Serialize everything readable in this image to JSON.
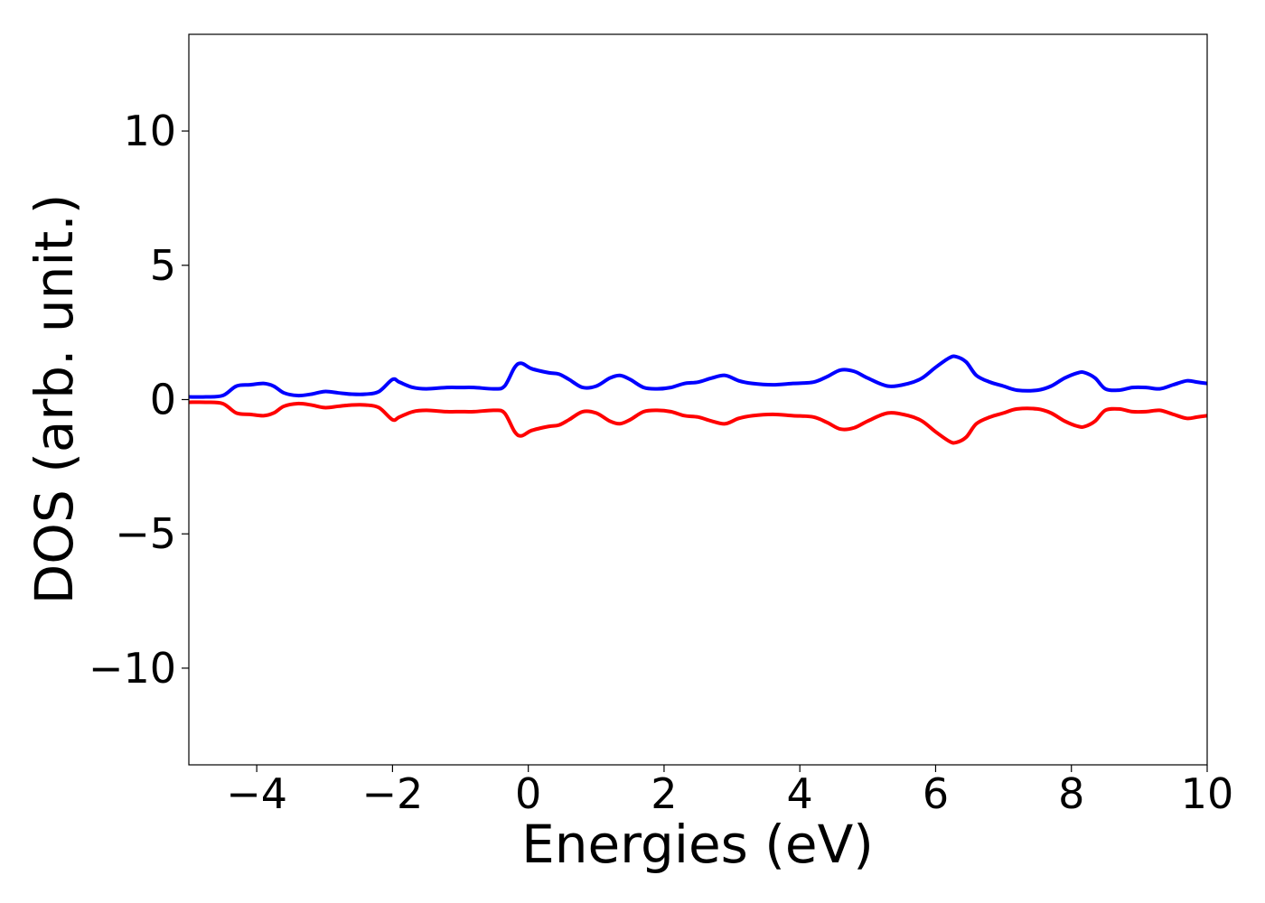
{
  "chart_data": {
    "type": "line",
    "title": "",
    "xlabel": "Energies (eV)",
    "ylabel": "DOS (arb. unit.)",
    "xlim": [
      -5,
      10
    ],
    "ylim": [
      -13.6,
      13.6
    ],
    "xticks": [
      -4,
      -2,
      0,
      2,
      4,
      6,
      8,
      10
    ],
    "xtick_labels": [
      "−4",
      "−2",
      "0",
      "2",
      "4",
      "6",
      "8",
      "10"
    ],
    "yticks": [
      -10,
      -5,
      0,
      5,
      10
    ],
    "ytick_labels": [
      "−10",
      "−5",
      "0",
      "5",
      "10"
    ],
    "grid": false,
    "legend": "none",
    "x": [
      -5.0,
      -4.75,
      -4.5,
      -4.3,
      -4.1,
      -3.9,
      -3.75,
      -3.6,
      -3.4,
      -3.2,
      -3.0,
      -2.8,
      -2.6,
      -2.4,
      -2.2,
      -2.0,
      -1.9,
      -1.7,
      -1.5,
      -1.2,
      -1.0,
      -0.8,
      -0.5,
      -0.35,
      -0.2,
      -0.1,
      0.05,
      0.3,
      0.45,
      0.6,
      0.8,
      1.0,
      1.2,
      1.35,
      1.5,
      1.7,
      1.9,
      2.1,
      2.3,
      2.5,
      2.7,
      2.9,
      3.1,
      3.3,
      3.6,
      3.9,
      4.2,
      4.4,
      4.6,
      4.8,
      5.0,
      5.3,
      5.6,
      5.8,
      6.0,
      6.2,
      6.3,
      6.45,
      6.6,
      6.8,
      7.0,
      7.2,
      7.5,
      7.7,
      7.9,
      8.1,
      8.2,
      8.35,
      8.5,
      8.7,
      8.9,
      9.1,
      9.3,
      9.5,
      9.7,
      9.85,
      10.0
    ],
    "series": [
      {
        "color": "#0000ff",
        "values": [
          0.1,
          0.1,
          0.15,
          0.5,
          0.55,
          0.6,
          0.5,
          0.25,
          0.15,
          0.2,
          0.3,
          0.25,
          0.2,
          0.2,
          0.3,
          0.75,
          0.65,
          0.45,
          0.4,
          0.45,
          0.45,
          0.45,
          0.4,
          0.5,
          1.2,
          1.35,
          1.15,
          1.0,
          0.95,
          0.75,
          0.45,
          0.5,
          0.8,
          0.9,
          0.75,
          0.45,
          0.4,
          0.45,
          0.6,
          0.65,
          0.8,
          0.9,
          0.7,
          0.6,
          0.55,
          0.6,
          0.65,
          0.85,
          1.1,
          1.05,
          0.8,
          0.5,
          0.6,
          0.8,
          1.2,
          1.55,
          1.6,
          1.4,
          0.9,
          0.65,
          0.5,
          0.35,
          0.35,
          0.5,
          0.8,
          1.0,
          1.0,
          0.8,
          0.4,
          0.35,
          0.45,
          0.45,
          0.4,
          0.55,
          0.7,
          0.65,
          0.6
        ]
      },
      {
        "color": "#ff0000",
        "values": [
          -0.1,
          -0.1,
          -0.15,
          -0.5,
          -0.55,
          -0.6,
          -0.5,
          -0.25,
          -0.15,
          -0.2,
          -0.3,
          -0.25,
          -0.2,
          -0.2,
          -0.3,
          -0.75,
          -0.65,
          -0.45,
          -0.4,
          -0.45,
          -0.45,
          -0.45,
          -0.4,
          -0.5,
          -1.2,
          -1.35,
          -1.15,
          -1.0,
          -0.95,
          -0.75,
          -0.45,
          -0.5,
          -0.8,
          -0.9,
          -0.75,
          -0.45,
          -0.4,
          -0.45,
          -0.6,
          -0.65,
          -0.8,
          -0.9,
          -0.7,
          -0.6,
          -0.55,
          -0.6,
          -0.65,
          -0.85,
          -1.1,
          -1.05,
          -0.8,
          -0.5,
          -0.6,
          -0.8,
          -1.2,
          -1.55,
          -1.6,
          -1.4,
          -0.9,
          -0.65,
          -0.5,
          -0.35,
          -0.35,
          -0.5,
          -0.8,
          -1.0,
          -1.0,
          -0.8,
          -0.4,
          -0.35,
          -0.45,
          -0.45,
          -0.4,
          -0.55,
          -0.7,
          -0.65,
          -0.6
        ]
      }
    ]
  }
}
